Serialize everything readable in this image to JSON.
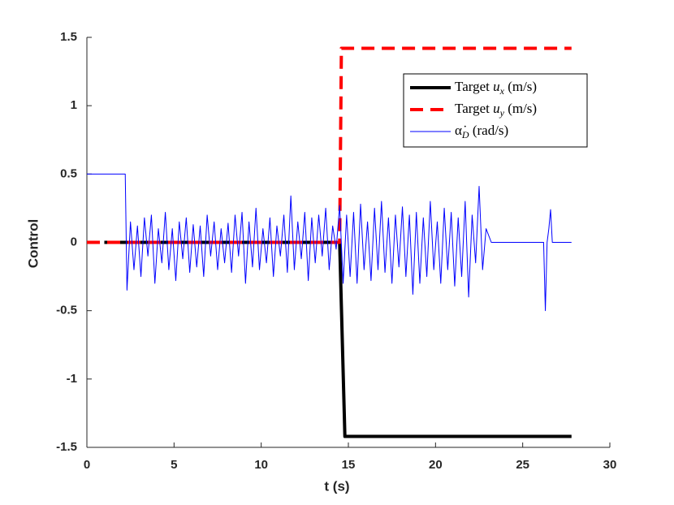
{
  "chart_data": {
    "type": "line",
    "xlabel": "t (s)",
    "ylabel": "Control",
    "xlim": [
      0,
      30
    ],
    "xticks": [
      0,
      5,
      10,
      15,
      20,
      25,
      30
    ],
    "ylim": [
      -1.5,
      1.5
    ],
    "yticks": [
      -1.5,
      -1,
      -0.5,
      0,
      0.5,
      1,
      1.5
    ],
    "legend": "upper right",
    "series": [
      {
        "name": "Target u_x (m/s)",
        "color": "#000000",
        "style": "solid",
        "width": 4,
        "x": [
          1,
          14.5,
          14.8,
          27.8
        ],
        "values": [
          0,
          0,
          -1.42,
          -1.42
        ]
      },
      {
        "name": "Target u_y (m/s)",
        "color": "#ff0000",
        "style": "dashed",
        "width": 4,
        "x": [
          0,
          14.5,
          14.6,
          27.8
        ],
        "values": [
          0,
          0,
          1.42,
          1.42
        ]
      },
      {
        "name": "α̇_D (rad/s)",
        "color": "#0000ff",
        "style": "solid",
        "width": 1,
        "x": [
          0,
          2.2,
          2.3,
          2.5,
          2.7,
          2.9,
          3.1,
          3.3,
          3.5,
          3.7,
          3.9,
          4.1,
          4.3,
          4.5,
          4.7,
          4.9,
          5.1,
          5.3,
          5.5,
          5.7,
          5.9,
          6.1,
          6.3,
          6.5,
          6.7,
          6.9,
          7.1,
          7.3,
          7.5,
          7.7,
          7.9,
          8.1,
          8.3,
          8.5,
          8.7,
          8.9,
          9.1,
          9.3,
          9.5,
          9.7,
          9.9,
          10.1,
          10.3,
          10.5,
          10.7,
          10.9,
          11.1,
          11.3,
          11.5,
          11.7,
          11.9,
          12.1,
          12.3,
          12.5,
          12.7,
          12.9,
          13.1,
          13.3,
          13.5,
          13.7,
          13.9,
          14.1,
          14.3,
          14.5,
          14.7,
          14.9,
          15.1,
          15.3,
          15.5,
          15.7,
          15.9,
          16.1,
          16.3,
          16.5,
          16.7,
          16.9,
          17.1,
          17.3,
          17.5,
          17.7,
          17.9,
          18.1,
          18.3,
          18.5,
          18.7,
          18.9,
          19.1,
          19.3,
          19.5,
          19.7,
          19.9,
          20.1,
          20.3,
          20.5,
          20.7,
          20.9,
          21.1,
          21.3,
          21.5,
          21.7,
          21.9,
          22.1,
          22.3,
          22.5,
          22.7,
          22.9,
          23.2,
          26.2,
          26.3,
          26.4,
          26.5,
          26.6,
          26.7,
          27.8
        ],
        "values": [
          0.5,
          0.5,
          -0.35,
          0.15,
          -0.2,
          0.12,
          -0.25,
          0.18,
          -0.1,
          0.2,
          -0.3,
          0.1,
          -0.15,
          0.22,
          -0.2,
          0.1,
          -0.28,
          0.15,
          -0.12,
          0.18,
          -0.22,
          0.13,
          -0.18,
          0.12,
          -0.25,
          0.2,
          -0.1,
          0.15,
          -0.2,
          0.1,
          -0.15,
          0.14,
          -0.22,
          0.2,
          -0.1,
          0.22,
          -0.3,
          0.15,
          -0.18,
          0.25,
          -0.2,
          0.1,
          -0.15,
          0.18,
          -0.25,
          0.12,
          -0.1,
          0.2,
          -0.22,
          0.34,
          -0.2,
          0.15,
          -0.12,
          0.22,
          -0.28,
          0.18,
          -0.15,
          0.2,
          -0.1,
          0.25,
          -0.2,
          0.12,
          -0.05,
          0.27,
          -0.3,
          0.2,
          -0.25,
          0.22,
          -0.3,
          0.28,
          -0.2,
          0.15,
          -0.28,
          0.25,
          -0.2,
          0.3,
          -0.22,
          0.18,
          -0.3,
          0.2,
          -0.18,
          0.26,
          -0.25,
          0.2,
          -0.38,
          0.22,
          -0.3,
          0.18,
          -0.25,
          0.3,
          -0.2,
          0.15,
          -0.3,
          0.25,
          -0.2,
          0.22,
          -0.32,
          0.18,
          -0.25,
          0.3,
          -0.4,
          0.2,
          -0.15,
          0.41,
          -0.2,
          0.1,
          0,
          0,
          -0.5,
          0,
          0.1,
          0.24,
          0,
          0
        ]
      }
    ]
  }
}
